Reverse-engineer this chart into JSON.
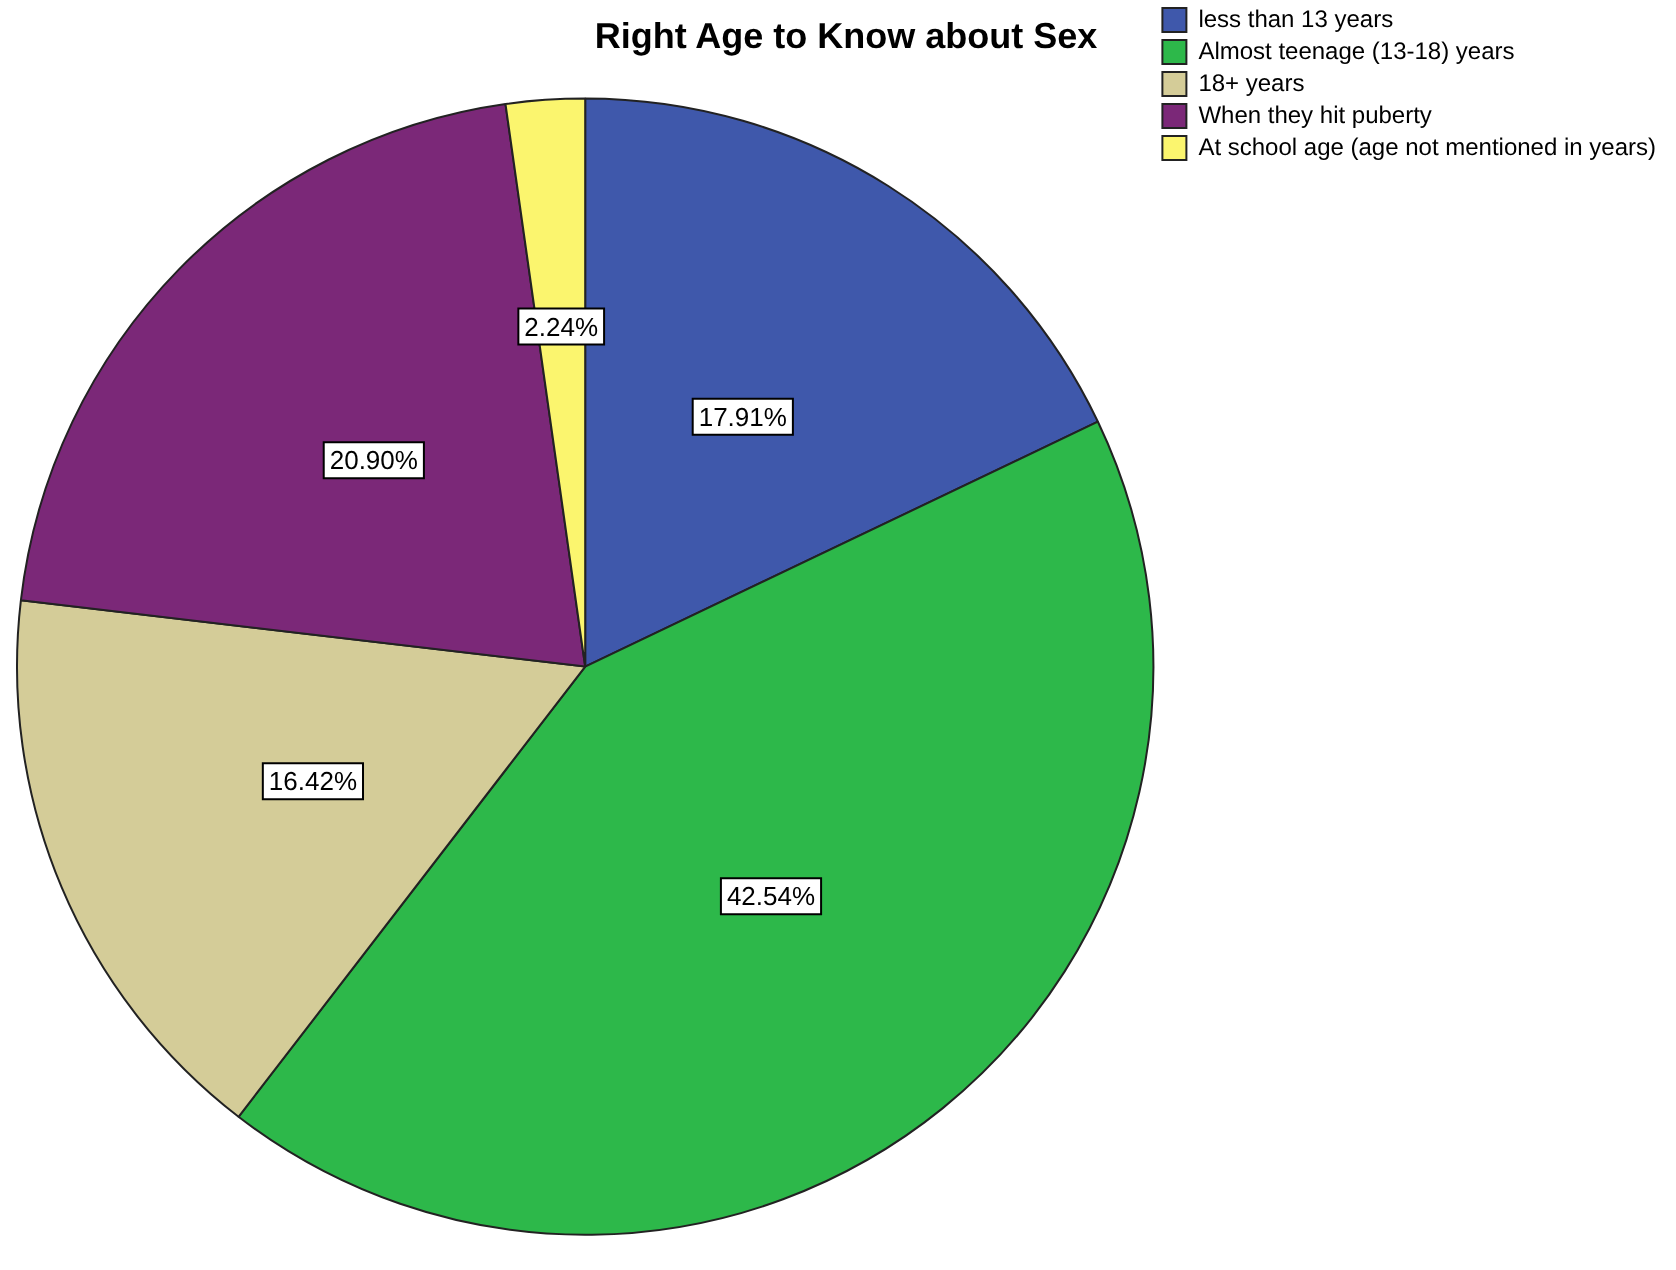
{
  "chart_data": {
    "type": "pie",
    "title": "Right Age to Know about Sex",
    "categories": [
      "less than 13 years",
      "Almost teenage (13-18) years",
      "18+ years",
      "When they hit puberty",
      "At school age (age not mentioned in years)"
    ],
    "values": [
      17.91,
      42.54,
      16.42,
      20.9,
      2.24
    ],
    "value_labels": [
      "17.91%",
      "42.54%",
      "16.42%",
      "20.90%",
      "2.24%"
    ],
    "colors": [
      "#3f58ab",
      "#2db84a",
      "#d4cc98",
      "#7b2878",
      "#fbf56e"
    ],
    "legend": "top right"
  }
}
